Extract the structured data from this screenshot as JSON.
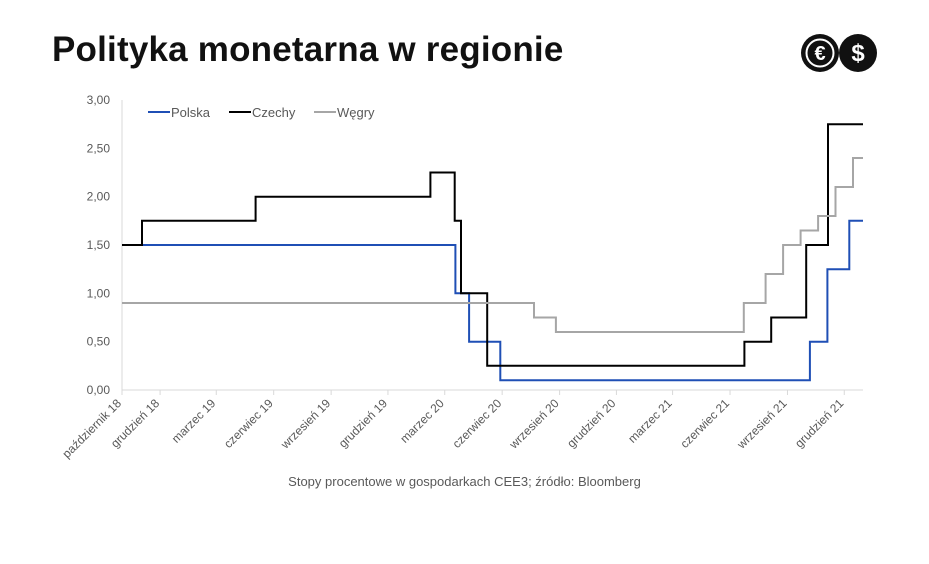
{
  "header": {
    "title": "Polityka monetarna w regionie",
    "logo_glyphs": [
      "€",
      "$"
    ]
  },
  "caption": "Stopy procentowe w gospodarkach CEE3; źródło: Bloomberg",
  "chart_data": {
    "type": "line",
    "step": true,
    "title": "",
    "xlabel": "",
    "ylabel": "",
    "x_domain": [
      "2018-10-01",
      "2021-12-31"
    ],
    "ylim": [
      0,
      3
    ],
    "y_ticks": [
      "0,00",
      "0,50",
      "1,00",
      "1,50",
      "2,00",
      "2,50",
      "3,00"
    ],
    "y_tick_values": [
      0,
      0.5,
      1,
      1.5,
      2,
      2.5,
      3
    ],
    "x_ticks": [
      {
        "date": "2018-10-01",
        "label": "październik 18"
      },
      {
        "date": "2018-12-01",
        "label": "grudzień 18"
      },
      {
        "date": "2019-03-01",
        "label": "marzec 19"
      },
      {
        "date": "2019-06-01",
        "label": "czerwiec 19"
      },
      {
        "date": "2019-09-01",
        "label": "wrzesień 19"
      },
      {
        "date": "2019-12-01",
        "label": "grudzień 19"
      },
      {
        "date": "2020-03-01",
        "label": "marzec 20"
      },
      {
        "date": "2020-06-01",
        "label": "czerwiec 20"
      },
      {
        "date": "2020-09-01",
        "label": "wrzesień 20"
      },
      {
        "date": "2020-12-01",
        "label": "grudzień 20"
      },
      {
        "date": "2021-03-01",
        "label": "marzec 21"
      },
      {
        "date": "2021-06-01",
        "label": "czerwiec 21"
      },
      {
        "date": "2021-09-01",
        "label": "wrzesień 21"
      },
      {
        "date": "2021-12-01",
        "label": "grudzień 21"
      }
    ],
    "grid": false,
    "legend_position": "top-left",
    "series": [
      {
        "name": "Polska",
        "color": "#1f4fb5",
        "points": [
          [
            "2018-10-01",
            1.5
          ],
          [
            "2020-03-18",
            1.0
          ],
          [
            "2020-04-09",
            0.5
          ],
          [
            "2020-05-29",
            0.1
          ],
          [
            "2021-10-07",
            0.5
          ],
          [
            "2021-11-04",
            1.25
          ],
          [
            "2021-12-09",
            1.75
          ],
          [
            "2021-12-31",
            1.75
          ]
        ]
      },
      {
        "name": "Czechy",
        "color": "#000000",
        "points": [
          [
            "2018-10-01",
            1.5
          ],
          [
            "2018-11-02",
            1.75
          ],
          [
            "2019-05-03",
            2.0
          ],
          [
            "2020-02-07",
            2.25
          ],
          [
            "2020-03-17",
            1.75
          ],
          [
            "2020-03-27",
            1.0
          ],
          [
            "2020-05-08",
            0.25
          ],
          [
            "2021-06-24",
            0.5
          ],
          [
            "2021-08-06",
            0.75
          ],
          [
            "2021-10-01",
            1.5
          ],
          [
            "2021-11-05",
            2.75
          ],
          [
            "2021-12-31",
            2.75
          ]
        ]
      },
      {
        "name": "Węgry",
        "color": "#a6a6a6",
        "points": [
          [
            "2018-10-01",
            0.9
          ],
          [
            "2020-07-22",
            0.75
          ],
          [
            "2020-08-26",
            0.6
          ],
          [
            "2021-06-23",
            0.9
          ],
          [
            "2021-07-28",
            1.2
          ],
          [
            "2021-08-25",
            1.5
          ],
          [
            "2021-09-22",
            1.65
          ],
          [
            "2021-10-20",
            1.8
          ],
          [
            "2021-11-17",
            2.1
          ],
          [
            "2021-12-15",
            2.4
          ],
          [
            "2021-12-31",
            2.4
          ]
        ]
      }
    ]
  }
}
